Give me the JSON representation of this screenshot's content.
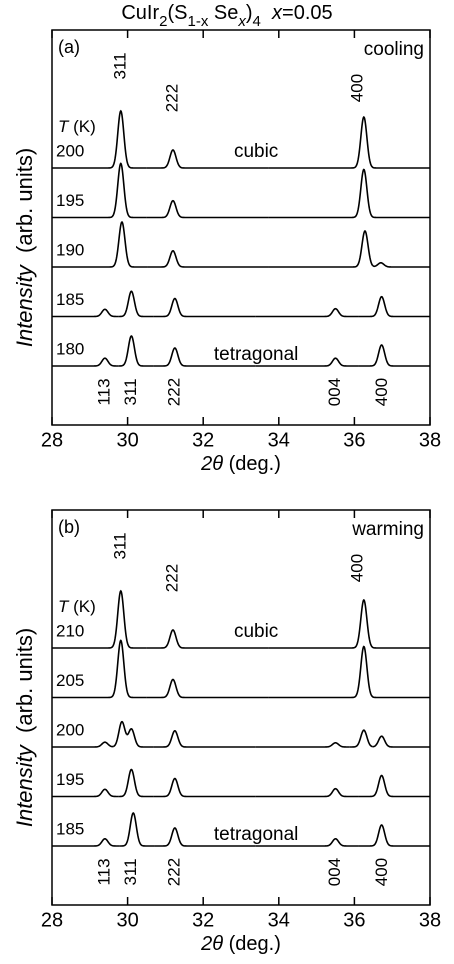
{
  "figure_title_parts": [
    {
      "text": "CuIr"
    },
    {
      "text": "2",
      "sub": true
    },
    {
      "text": "(S"
    },
    {
      "text": "1-x",
      "sub": true,
      "italic_x": true
    },
    {
      "text": " Se"
    },
    {
      "text": "x",
      "sub": true,
      "italic": true
    },
    {
      "text": ")"
    },
    {
      "text": "4",
      "sub": true
    },
    {
      "text": "  "
    },
    {
      "text": "x",
      "italic": true
    },
    {
      "text": "=0.05"
    }
  ],
  "chart_data": [
    {
      "type": "line",
      "panel_label": "(a)",
      "mode": "cooling",
      "ylabel_parts": [
        {
          "text": "Intensity",
          "italic": true
        },
        {
          "text": "  (arb. units)"
        }
      ],
      "temp_label_parts": [
        {
          "text": "T",
          "italic": true
        },
        {
          "text": " (K)"
        }
      ],
      "xlabel_parts": [
        {
          "text": "2θ",
          "italic": true
        },
        {
          "text": " (deg.)"
        }
      ],
      "xlim": [
        28,
        38
      ],
      "xticks": [
        28,
        30,
        32,
        34,
        36,
        38
      ],
      "phase_labels": {
        "cubic": "cubic",
        "tetragonal": "tetragonal"
      },
      "top_peaks": [
        {
          "text": "311",
          "x": 29.82
        },
        {
          "text": "222",
          "x": 31.2
        },
        {
          "text": "400",
          "x": 36.1
        }
      ],
      "bottom_peaks": [
        {
          "text": "113",
          "x": 29.4
        },
        {
          "text": "311",
          "x": 30.1
        },
        {
          "text": "222",
          "x": 31.25
        },
        {
          "text": "004",
          "x": 35.5
        },
        {
          "text": "400",
          "x": 36.75
        }
      ],
      "series": [
        {
          "name": "200",
          "color": "#000000",
          "x": [
            29.82,
            31.2,
            36.25
          ],
          "values": [
            0.95,
            0.3,
            0.85
          ]
        },
        {
          "name": "195",
          "color": "#000000",
          "x": [
            29.82,
            31.2,
            36.25
          ],
          "values": [
            0.9,
            0.28,
            0.8
          ]
        },
        {
          "name": "190",
          "color": "#000000",
          "x": [
            29.85,
            31.2,
            36.28,
            36.7
          ],
          "values": [
            0.75,
            0.27,
            0.6,
            0.07
          ]
        },
        {
          "name": "185",
          "color": "#000000",
          "x": [
            29.4,
            30.1,
            31.25,
            35.5,
            36.72
          ],
          "values": [
            0.12,
            0.42,
            0.3,
            0.13,
            0.33
          ]
        },
        {
          "name": "180",
          "color": "#000000",
          "x": [
            29.4,
            30.1,
            31.25,
            35.5,
            36.72
          ],
          "values": [
            0.13,
            0.5,
            0.3,
            0.13,
            0.35
          ]
        }
      ]
    },
    {
      "type": "line",
      "panel_label": "(b)",
      "mode": "warming",
      "ylabel_parts": [
        {
          "text": "Intensity",
          "italic": true
        },
        {
          "text": "  (arb. units)"
        }
      ],
      "temp_label_parts": [
        {
          "text": "T",
          "italic": true
        },
        {
          "text": " (K)"
        }
      ],
      "xlabel_parts": [
        {
          "text": "2θ",
          "italic": true
        },
        {
          "text": " (deg.)"
        }
      ],
      "xlim": [
        28,
        38
      ],
      "xticks": [
        28,
        30,
        32,
        34,
        36,
        38
      ],
      "phase_labels": {
        "cubic": "cubic",
        "tetragonal": "tetragonal"
      },
      "top_peaks": [
        {
          "text": "311",
          "x": 29.82
        },
        {
          "text": "222",
          "x": 31.2
        },
        {
          "text": "400",
          "x": 36.1
        }
      ],
      "bottom_peaks": [
        {
          "text": "113",
          "x": 29.4
        },
        {
          "text": "311",
          "x": 30.1
        },
        {
          "text": "222",
          "x": 31.25
        },
        {
          "text": "004",
          "x": 35.5
        },
        {
          "text": "400",
          "x": 36.75
        }
      ],
      "series": [
        {
          "name": "210",
          "color": "#000000",
          "x": [
            29.82,
            31.2,
            36.25
          ],
          "values": [
            0.95,
            0.3,
            0.8
          ]
        },
        {
          "name": "205",
          "color": "#000000",
          "x": [
            29.82,
            31.2,
            36.25
          ],
          "values": [
            0.95,
            0.3,
            0.85
          ]
        },
        {
          "name": "200",
          "color": "#000000",
          "x": [
            29.4,
            29.85,
            30.1,
            31.25,
            35.5,
            36.25,
            36.72
          ],
          "values": [
            0.08,
            0.42,
            0.3,
            0.27,
            0.07,
            0.28,
            0.18
          ]
        },
        {
          "name": "195",
          "color": "#000000",
          "x": [
            29.4,
            30.1,
            31.25,
            35.5,
            36.72
          ],
          "values": [
            0.12,
            0.45,
            0.3,
            0.13,
            0.35
          ]
        },
        {
          "name": "185",
          "color": "#000000",
          "x": [
            29.4,
            30.15,
            31.25,
            35.5,
            36.72
          ],
          "values": [
            0.12,
            0.55,
            0.3,
            0.12,
            0.35
          ]
        }
      ]
    }
  ]
}
